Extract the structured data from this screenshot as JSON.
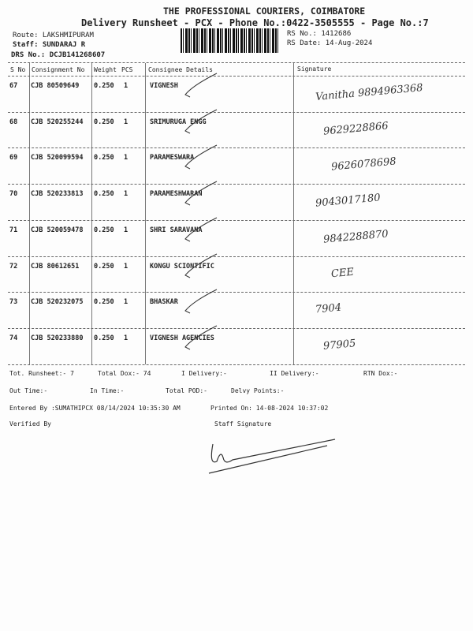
{
  "header": {
    "company": "THE PROFESSIONAL COURIERS, COIMBATORE",
    "title": "Delivery Runsheet - PCX - Phone No.:0422-3505555 - Page No.:7",
    "route": "Route: LAKSHMIPURAM",
    "staff": "Staff: SUNDARAJ R",
    "drs": "DRS No.: DCJB141268607",
    "rs_no": "RS No.: 1412686",
    "rs_date": "RS Date: 14-Aug-2024"
  },
  "columns": [
    "S No",
    "Consignment No",
    "Weight",
    "PCS",
    "Consignee Details",
    "Signature"
  ],
  "rows": [
    {
      "sno": "67",
      "cno": "CJB 80509649",
      "weight": "0.250",
      "pcs": "1",
      "consignee": "VIGNESH",
      "hand": "Vanitha 9894963368"
    },
    {
      "sno": "68",
      "cno": "CJB 520255244",
      "weight": "0.250",
      "pcs": "1",
      "consignee": "SRIMURUGA ENGG",
      "hand": "9629228866"
    },
    {
      "sno": "69",
      "cno": "CJB 520099594",
      "weight": "0.250",
      "pcs": "1",
      "consignee": "PARAMESWARA",
      "hand": "9626078698"
    },
    {
      "sno": "70",
      "cno": "CJB 520233813",
      "weight": "0.250",
      "pcs": "1",
      "consignee": "PARAMESHWARAN",
      "hand": "9043017180"
    },
    {
      "sno": "71",
      "cno": "CJB 520059478",
      "weight": "0.250",
      "pcs": "1",
      "consignee": "SHRI SARAVANA",
      "hand": "9842288870"
    },
    {
      "sno": "72",
      "cno": "CJB 80612651",
      "weight": "0.250",
      "pcs": "1",
      "consignee": "KONGU SCIONTIFIC",
      "hand": "CEE"
    },
    {
      "sno": "73",
      "cno": "CJB 520232075",
      "weight": "0.250",
      "pcs": "1",
      "consignee": "BHASKAR",
      "hand": "7904"
    },
    {
      "sno": "74",
      "cno": "CJB 520233880",
      "weight": "0.250",
      "pcs": "1",
      "consignee": "VIGNESH AGENCIES",
      "hand": "97905"
    }
  ],
  "footer": {
    "tot_runsheet": "Tot. Runsheet:- 7",
    "total_dox": "Total Dox:-   74",
    "i_delivery": "I Delivery:-",
    "ii_delivery": "II Delivery:-",
    "rtn_dox": "RTN Dox:-",
    "out_time": "Out Time:-",
    "in_time": "In Time:-",
    "total_pod": "Total POD:-",
    "delvy_points": "Delvy Points:-",
    "entered_by": "Entered By :SUMATHIPCX 08/14/2024 10:35:30 AM",
    "printed_on": "Printed On: 14-08-2024 10:37:02",
    "verified_by": "Verified By",
    "staff_signature": "Staff Signature"
  }
}
